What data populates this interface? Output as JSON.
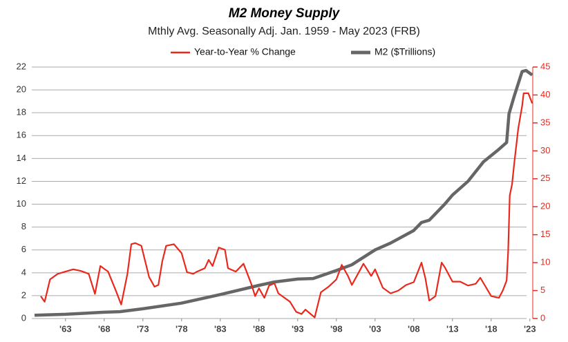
{
  "chart_data": {
    "type": "line",
    "title": "M2 Money Supply",
    "subtitle": "Mthly Avg. Seasonally Adj. Jan. 1959 - May 2023  (FRB)",
    "xlim": [
      1959,
      2024
    ],
    "xticks": [
      {
        "value": 1963,
        "label": "'63"
      },
      {
        "value": 1968,
        "label": "'68"
      },
      {
        "value": 1973,
        "label": "'73"
      },
      {
        "value": 1978,
        "label": "'78"
      },
      {
        "value": 1983,
        "label": "'83"
      },
      {
        "value": 1988,
        "label": "'88"
      },
      {
        "value": 1993,
        "label": "'93"
      },
      {
        "value": 1998,
        "label": "'98"
      },
      {
        "value": 2003,
        "label": "'03"
      },
      {
        "value": 2008,
        "label": "'08"
      },
      {
        "value": 2013,
        "label": "'13"
      },
      {
        "value": 2018,
        "label": "'18"
      },
      {
        "value": 2023,
        "label": "'23"
      }
    ],
    "ylim": [
      0,
      22
    ],
    "yticks": [
      0,
      2,
      4,
      6,
      8,
      10,
      12,
      14,
      16,
      18,
      20,
      22
    ],
    "y2lim": [
      0,
      45
    ],
    "y2ticks": [
      0,
      5,
      10,
      15,
      20,
      25,
      30,
      35,
      40,
      45
    ],
    "grid": true,
    "series": [
      {
        "name": "Year-to-Year % Change",
        "color": "#e8281c",
        "axis": "y2",
        "x": [
          1959.8,
          1960.3,
          1961,
          1962,
          1963,
          1964,
          1965,
          1966,
          1966.8,
          1967.5,
          1968.5,
          1969.5,
          1970.2,
          1971,
          1971.5,
          1972,
          1972.8,
          1973.8,
          1974.5,
          1975,
          1975.5,
          1976,
          1977,
          1978,
          1978.7,
          1979.5,
          1980,
          1981,
          1981.5,
          1982,
          1982.8,
          1983.6,
          1984,
          1985,
          1986,
          1987,
          1987.5,
          1988,
          1988.7,
          1989.3,
          1990,
          1990.5,
          1991,
          1992,
          1992.8,
          1993.5,
          1994,
          1995.2,
          1996,
          1997,
          1998,
          1998.7,
          1999.5,
          2000,
          2001.5,
          2002.5,
          2003,
          2004,
          2005,
          2006,
          2007,
          2008,
          2009,
          2009.5,
          2010,
          2010.8,
          2011.6,
          2012,
          2013,
          2014,
          2015,
          2016,
          2016.6,
          2018,
          2019,
          2019.5,
          2020,
          2020.2,
          2020.4,
          2020.7,
          2021,
          2021.5,
          2022,
          2022.2,
          2022.8,
          2023.3
        ],
        "values": [
          4,
          3,
          7,
          8,
          8.4,
          8.8,
          8.5,
          8,
          4.4,
          9.4,
          8.4,
          5,
          2.5,
          8,
          13.3,
          13.5,
          13,
          7.4,
          5.7,
          6,
          10.2,
          13,
          13.3,
          11.7,
          8.3,
          8,
          8.4,
          9,
          10.5,
          9.4,
          12.7,
          12.3,
          9,
          8.4,
          9.8,
          6.2,
          4,
          5.4,
          3.7,
          5.9,
          6.3,
          4.5,
          4,
          3,
          1.2,
          0.8,
          1.6,
          0.2,
          4.7,
          5.7,
          7,
          9.6,
          7.6,
          6,
          9.8,
          7.6,
          8.8,
          5.5,
          4.5,
          5,
          6,
          6.5,
          10,
          7.2,
          3.2,
          4,
          10,
          9.2,
          6.6,
          6.6,
          5.9,
          6.2,
          7.3,
          4,
          3.7,
          5,
          6.8,
          12,
          22,
          24,
          28,
          34,
          38,
          40.3,
          40.3,
          38.5
        ]
      },
      {
        "name": "M2 ($Trillions)",
        "color": "#666666",
        "axis": "y",
        "x": [
          1959,
          1963,
          1968,
          1970,
          1973,
          1978,
          1983,
          1988,
          1990,
          1993,
          1995,
          1998,
          2000,
          2003,
          2005,
          2008,
          2009,
          2010,
          2012,
          2013,
          2015,
          2017,
          2019,
          2020,
          2020.3,
          2021,
          2022,
          2022.5,
          2023.3
        ],
        "values": [
          0.29,
          0.37,
          0.55,
          0.6,
          0.85,
          1.35,
          2.1,
          2.9,
          3.2,
          3.45,
          3.5,
          4.2,
          4.7,
          6,
          6.6,
          7.7,
          8.4,
          8.6,
          10,
          10.8,
          12,
          13.7,
          14.8,
          15.4,
          17.9,
          19.5,
          21.6,
          21.7,
          21.3
        ]
      }
    ]
  }
}
